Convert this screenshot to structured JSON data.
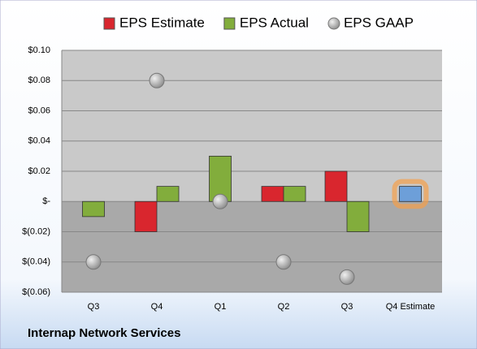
{
  "chart_data": {
    "type": "bar",
    "title": "Internap Network Services",
    "categories": [
      "Q3",
      "Q4",
      "Q1",
      "Q2",
      "Q3",
      "Q4 Estimate"
    ],
    "series": [
      {
        "name": "EPS Estimate",
        "color": "#d9262e",
        "kind": "bar",
        "values": [
          null,
          -0.02,
          null,
          0.01,
          0.02,
          0.01
        ]
      },
      {
        "name": "EPS Actual",
        "color": "#82ad3c",
        "kind": "bar",
        "values": [
          -0.01,
          0.01,
          0.03,
          0.01,
          -0.02,
          null
        ]
      },
      {
        "name": "EPS GAAP",
        "color": "#a6a6a6",
        "kind": "marker",
        "values": [
          -0.04,
          0.08,
          0,
          -0.04,
          -0.05,
          null
        ]
      }
    ],
    "estimate_color": "#6d9fd9",
    "ylim": [
      -0.06,
      0.1
    ],
    "yticks": [
      {
        "value": -0.06,
        "label": "$(0.06)"
      },
      {
        "value": -0.04,
        "label": "$(0.04)"
      },
      {
        "value": -0.02,
        "label": "$(0.02)"
      },
      {
        "value": 0,
        "label": "$-"
      },
      {
        "value": 0.02,
        "label": "$0.02"
      },
      {
        "value": 0.04,
        "label": "$0.04"
      },
      {
        "value": 0.06,
        "label": "$0.06"
      },
      {
        "value": 0.08,
        "label": "$0.08"
      },
      {
        "value": 0.1,
        "label": "$0.10"
      }
    ],
    "grid": true
  }
}
